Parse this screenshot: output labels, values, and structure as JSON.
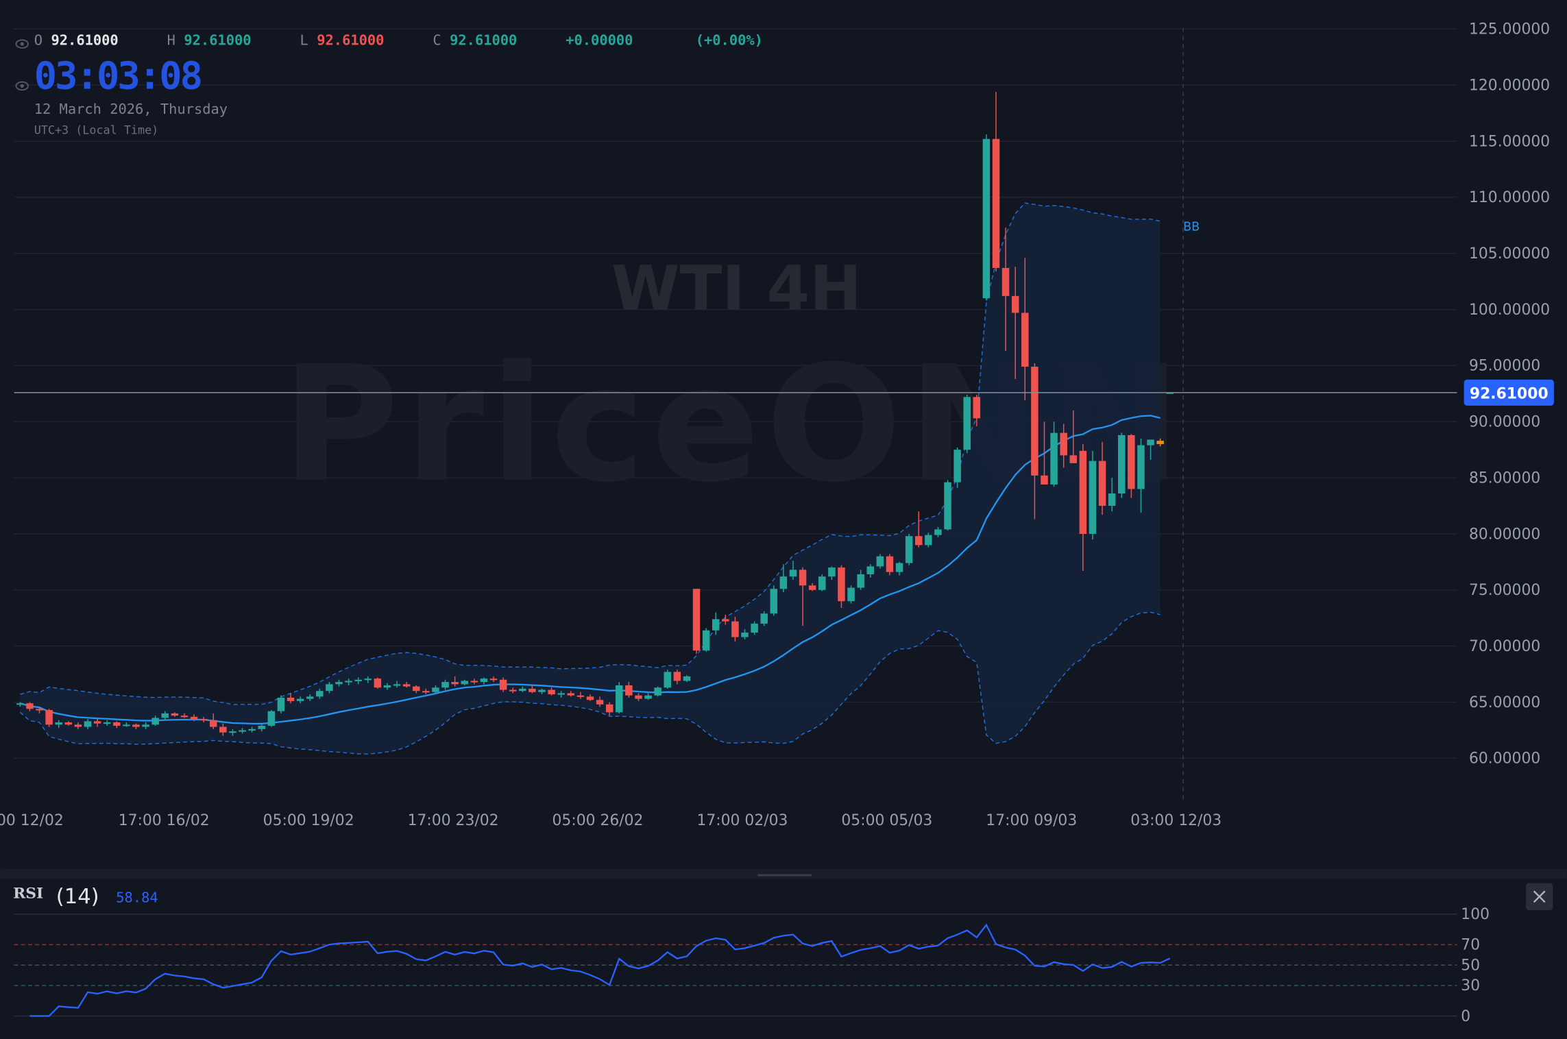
{
  "header": {
    "open_label": "O",
    "open": "92.61000",
    "high_label": "H",
    "high": "92.61000",
    "low_label": "L",
    "low": "92.61000",
    "close_label": "C",
    "close": "92.61000",
    "change": "+0.00000",
    "change_pct": "(+0.00%)",
    "clock": "03:03:08",
    "date": "12 March 2026, Thursday",
    "timezone": "UTC+3 (Local Time)"
  },
  "watermark": {
    "symbol": "WTI 4H",
    "brand": "PriceONN"
  },
  "indicator_label": "BB",
  "current_price": "92.61000",
  "colors": {
    "up": "#26a69a",
    "down": "#ef5350",
    "highlight": "#f0890f",
    "accent": "#2962ff",
    "bb_mid": "#2196f3",
    "rsi": "#2962ff"
  },
  "rsi": {
    "label": "RSI",
    "period": "(14)",
    "value": "58.84",
    "levels": [
      "100",
      "70",
      "50",
      "30",
      "0"
    ]
  },
  "chart_data": {
    "type": "candlestick",
    "y_ticks": [
      "125.00000",
      "120.00000",
      "115.00000",
      "110.00000",
      "105.00000",
      "100.00000",
      "95.00000",
      "90.00000",
      "85.00000",
      "80.00000",
      "75.00000",
      "70.00000",
      "65.00000",
      "60.00000"
    ],
    "ylim": [
      60,
      125
    ],
    "x_ticks": [
      "00 12/02",
      "17:00 16/02",
      "05:00 19/02",
      "17:00 23/02",
      "05:00 26/02",
      "17:00 02/03",
      "05:00 05/03",
      "17:00 09/03",
      "03:00 12/03"
    ],
    "grid": true,
    "ohlc": [
      [
        64.8,
        65,
        64.6,
        64.9
      ],
      [
        64.9,
        65,
        64.2,
        64.4
      ],
      [
        64.4,
        64.6,
        64,
        64.3
      ],
      [
        64.3,
        64.4,
        62.8,
        63
      ],
      [
        63,
        63.4,
        62.7,
        63.2
      ],
      [
        63.2,
        63.3,
        62.9,
        63
      ],
      [
        63,
        63.2,
        62.6,
        62.8
      ],
      [
        62.8,
        63.5,
        62.6,
        63.3
      ],
      [
        63.3,
        63.5,
        62.8,
        63.1
      ],
      [
        63.1,
        63.4,
        62.9,
        63.2
      ],
      [
        63.2,
        63.3,
        62.7,
        62.9
      ],
      [
        62.9,
        63.2,
        62.8,
        63
      ],
      [
        63,
        63.1,
        62.6,
        62.8
      ],
      [
        62.8,
        63.2,
        62.6,
        63
      ],
      [
        63,
        63.8,
        62.9,
        63.6
      ],
      [
        63.6,
        64.2,
        63.4,
        64
      ],
      [
        64,
        64.1,
        63.7,
        63.8
      ],
      [
        63.8,
        64,
        63.6,
        63.7
      ],
      [
        63.7,
        63.9,
        63.3,
        63.5
      ],
      [
        63.5,
        63.7,
        63.2,
        63.4
      ],
      [
        63.4,
        64,
        62.6,
        62.8
      ],
      [
        62.8,
        63.1,
        62,
        62.3
      ],
      [
        62.3,
        62.6,
        62,
        62.4
      ],
      [
        62.4,
        62.7,
        62.2,
        62.5
      ],
      [
        62.5,
        62.8,
        62.3,
        62.6
      ],
      [
        62.6,
        63,
        62.4,
        62.9
      ],
      [
        62.9,
        64.3,
        62.8,
        64.2
      ],
      [
        64.2,
        65.6,
        64,
        65.4
      ],
      [
        65.4,
        65.8,
        64.9,
        65.1
      ],
      [
        65.1,
        65.5,
        64.9,
        65.3
      ],
      [
        65.3,
        65.7,
        65.1,
        65.5
      ],
      [
        65.5,
        66.2,
        65.3,
        66
      ],
      [
        66,
        66.8,
        65.8,
        66.6
      ],
      [
        66.6,
        67,
        66.4,
        66.8
      ],
      [
        66.8,
        67.1,
        66.5,
        66.9
      ],
      [
        66.9,
        67.2,
        66.6,
        67
      ],
      [
        67,
        67.3,
        66.7,
        67.1
      ],
      [
        67.1,
        67.2,
        66.2,
        66.3
      ],
      [
        66.3,
        66.7,
        66.1,
        66.5
      ],
      [
        66.5,
        66.9,
        66.3,
        66.6
      ],
      [
        66.6,
        66.8,
        66.3,
        66.4
      ],
      [
        66.4,
        66.5,
        65.8,
        66
      ],
      [
        66,
        66.2,
        65.7,
        65.9
      ],
      [
        65.9,
        66.5,
        65.8,
        66.3
      ],
      [
        66.3,
        67,
        66.1,
        66.8
      ],
      [
        66.8,
        67.3,
        66.4,
        66.6
      ],
      [
        66.6,
        67,
        66.5,
        66.9
      ],
      [
        66.9,
        67.1,
        66.6,
        66.8
      ],
      [
        66.8,
        67.2,
        66.6,
        67.1
      ],
      [
        67.1,
        67.3,
        66.8,
        67
      ],
      [
        67,
        67.2,
        65.9,
        66.1
      ],
      [
        66.1,
        66.3,
        65.8,
        66
      ],
      [
        66,
        66.4,
        65.9,
        66.2
      ],
      [
        66.2,
        66.5,
        65.8,
        65.9
      ],
      [
        65.9,
        66.2,
        65.7,
        66.1
      ],
      [
        66.1,
        66.3,
        65.6,
        65.7
      ],
      [
        65.7,
        66,
        65.4,
        65.8
      ],
      [
        65.8,
        66,
        65.5,
        65.6
      ],
      [
        65.6,
        65.9,
        65.3,
        65.5
      ],
      [
        65.5,
        65.7,
        65.1,
        65.2
      ],
      [
        65.2,
        65.5,
        64.6,
        64.8
      ],
      [
        64.8,
        65,
        63.8,
        64.1
      ],
      [
        64.1,
        66.8,
        64,
        66.5
      ],
      [
        66.5,
        66.8,
        65.4,
        65.6
      ],
      [
        65.6,
        65.8,
        65.1,
        65.3
      ],
      [
        65.3,
        65.8,
        65.2,
        65.6
      ],
      [
        65.6,
        66.4,
        65.5,
        66.3
      ],
      [
        66.3,
        67.9,
        66.2,
        67.7
      ],
      [
        67.7,
        67.9,
        66.6,
        66.9
      ],
      [
        66.9,
        67.4,
        66.8,
        67.3
      ],
      [
        75.1,
        75.1,
        69.3,
        69.6
      ],
      [
        69.6,
        71.6,
        69.5,
        71.4
      ],
      [
        71.4,
        73,
        71,
        72.4
      ],
      [
        72.4,
        72.8,
        71.9,
        72.2
      ],
      [
        72.2,
        72.6,
        70.4,
        70.8
      ],
      [
        70.8,
        71.5,
        70.6,
        71.2
      ],
      [
        71.2,
        72.2,
        71,
        72
      ],
      [
        72,
        73.1,
        71.8,
        72.9
      ],
      [
        72.9,
        75.4,
        72.7,
        75.1
      ],
      [
        75.1,
        77.3,
        74.8,
        76.2
      ],
      [
        76.2,
        77.6,
        75.9,
        76.8
      ],
      [
        76.8,
        77,
        71.8,
        75.4
      ],
      [
        75.4,
        75.6,
        74.9,
        75
      ],
      [
        75,
        76.4,
        74.9,
        76.2
      ],
      [
        76.2,
        77.1,
        75.9,
        77
      ],
      [
        77,
        77.2,
        73.4,
        74
      ],
      [
        74,
        75.4,
        73.8,
        75.2
      ],
      [
        75.2,
        76.8,
        75,
        76.4
      ],
      [
        76.4,
        77.3,
        76.1,
        77.1
      ],
      [
        77.1,
        78.2,
        76.9,
        78
      ],
      [
        78,
        78.2,
        76.3,
        76.6
      ],
      [
        76.6,
        77.5,
        76.3,
        77.4
      ],
      [
        77.4,
        80,
        77.2,
        79.8
      ],
      [
        79.8,
        82,
        78.8,
        79
      ],
      [
        79,
        80.1,
        78.8,
        79.9
      ],
      [
        79.9,
        80.6,
        79.7,
        80.4
      ],
      [
        80.4,
        84.8,
        80.3,
        84.6
      ],
      [
        84.6,
        87.7,
        84.1,
        87.5
      ],
      [
        87.5,
        92.4,
        87.2,
        92.2
      ],
      [
        92.2,
        92.4,
        89.6,
        90.3
      ],
      [
        101,
        115.6,
        100.8,
        115.2
      ],
      [
        115.2,
        119.4,
        103.4,
        103.7
      ],
      [
        103.7,
        107.3,
        96.3,
        101.2
      ],
      [
        101.2,
        103.8,
        93.8,
        99.7
      ],
      [
        99.7,
        104.6,
        91.9,
        94.9
      ],
      [
        94.9,
        95.2,
        81.3,
        85.2
      ],
      [
        85.2,
        90,
        84.4,
        84.4
      ],
      [
        84.4,
        90,
        84.2,
        89
      ],
      [
        89,
        89.8,
        85.9,
        87
      ],
      [
        87,
        91,
        86.3,
        86.3
      ],
      [
        87.4,
        88,
        76.7,
        80
      ],
      [
        80,
        87.4,
        79.5,
        86.5
      ],
      [
        86.5,
        88.2,
        81.7,
        82.5
      ],
      [
        82.5,
        85,
        82,
        83.6
      ],
      [
        83.6,
        89,
        83.2,
        88.8
      ],
      [
        88.8,
        88.9,
        83.2,
        84
      ],
      [
        84,
        88.5,
        81.9,
        87.9
      ],
      [
        87.9,
        88.3,
        86.6,
        88.4
      ],
      [
        88.3,
        88.5,
        87.8,
        88
      ],
      [
        92.61,
        92.61,
        92.61,
        92.61
      ]
    ],
    "highlighted_index": 118
  }
}
